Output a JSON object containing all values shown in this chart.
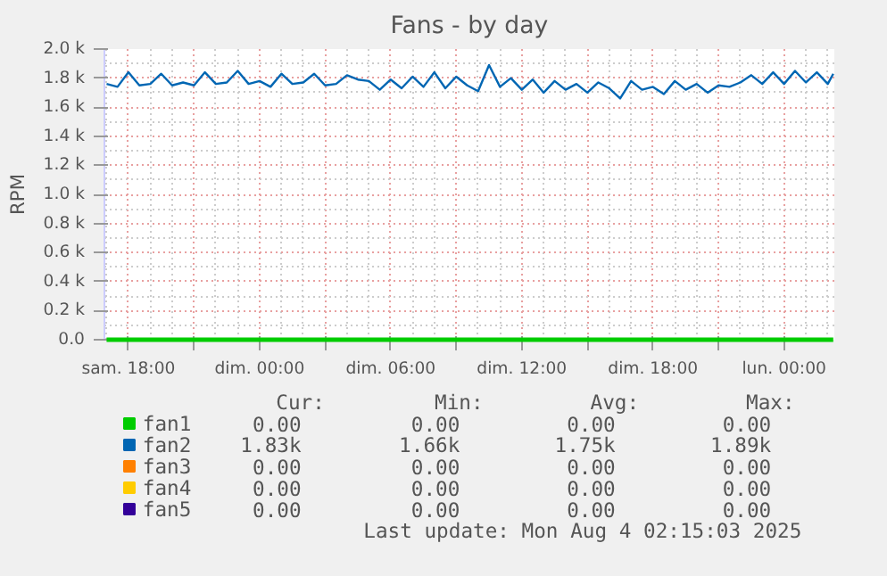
{
  "chart_data": {
    "type": "line",
    "title": "Fans - by day",
    "ylabel": "RPM",
    "x": [
      "2025-08-02T17:00",
      "2025-08-02T17:30",
      "2025-08-02T18:00",
      "2025-08-02T18:30",
      "2025-08-02T19:00",
      "2025-08-02T19:30",
      "2025-08-02T20:00",
      "2025-08-02T20:30",
      "2025-08-02T21:00",
      "2025-08-02T21:30",
      "2025-08-02T22:00",
      "2025-08-02T22:30",
      "2025-08-02T23:00",
      "2025-08-02T23:30",
      "2025-08-03T00:00",
      "2025-08-03T00:30",
      "2025-08-03T01:00",
      "2025-08-03T01:30",
      "2025-08-03T02:00",
      "2025-08-03T02:30",
      "2025-08-03T03:00",
      "2025-08-03T03:30",
      "2025-08-03T04:00",
      "2025-08-03T04:30",
      "2025-08-03T05:00",
      "2025-08-03T05:30",
      "2025-08-03T06:00",
      "2025-08-03T06:30",
      "2025-08-03T07:00",
      "2025-08-03T07:30",
      "2025-08-03T08:00",
      "2025-08-03T08:30",
      "2025-08-03T09:00",
      "2025-08-03T09:30",
      "2025-08-03T10:00",
      "2025-08-03T10:30",
      "2025-08-03T11:00",
      "2025-08-03T11:30",
      "2025-08-03T12:00",
      "2025-08-03T12:30",
      "2025-08-03T13:00",
      "2025-08-03T13:30",
      "2025-08-03T14:00",
      "2025-08-03T14:30",
      "2025-08-03T15:00",
      "2025-08-03T15:30",
      "2025-08-03T16:00",
      "2025-08-03T16:30",
      "2025-08-03T17:00",
      "2025-08-03T17:30",
      "2025-08-03T18:00",
      "2025-08-03T18:30",
      "2025-08-03T19:00",
      "2025-08-03T19:30",
      "2025-08-03T20:00",
      "2025-08-03T20:30",
      "2025-08-03T21:00",
      "2025-08-03T21:30",
      "2025-08-03T22:00",
      "2025-08-03T22:30",
      "2025-08-03T23:00",
      "2025-08-03T23:30",
      "2025-08-04T00:00",
      "2025-08-04T00:30",
      "2025-08-04T01:00",
      "2025-08-04T01:30",
      "2025-08-04T02:00",
      "2025-08-04T02:15"
    ],
    "series": [
      {
        "name": "fan1",
        "color": "#00cc00",
        "values": [
          0,
          0,
          0,
          0,
          0,
          0,
          0,
          0,
          0,
          0,
          0,
          0,
          0,
          0,
          0,
          0,
          0,
          0,
          0,
          0,
          0,
          0,
          0,
          0,
          0,
          0,
          0,
          0,
          0,
          0,
          0,
          0,
          0,
          0,
          0,
          0,
          0,
          0,
          0,
          0,
          0,
          0,
          0,
          0,
          0,
          0,
          0,
          0,
          0,
          0,
          0,
          0,
          0,
          0,
          0,
          0,
          0,
          0,
          0,
          0,
          0,
          0,
          0,
          0,
          0,
          0,
          0,
          0
        ]
      },
      {
        "name": "fan2",
        "color": "#0066b3",
        "values": [
          1760,
          1740,
          1840,
          1750,
          1760,
          1830,
          1750,
          1770,
          1750,
          1840,
          1760,
          1770,
          1850,
          1760,
          1780,
          1740,
          1830,
          1760,
          1770,
          1830,
          1750,
          1760,
          1820,
          1790,
          1780,
          1720,
          1790,
          1730,
          1810,
          1740,
          1840,
          1730,
          1810,
          1750,
          1710,
          1890,
          1740,
          1800,
          1720,
          1790,
          1700,
          1780,
          1720,
          1760,
          1700,
          1770,
          1730,
          1660,
          1780,
          1720,
          1740,
          1690,
          1780,
          1720,
          1760,
          1700,
          1750,
          1740,
          1770,
          1820,
          1760,
          1840,
          1760,
          1850,
          1770,
          1840,
          1760,
          1830
        ]
      },
      {
        "name": "fan3",
        "color": "#ff8000",
        "values": [
          null,
          null,
          null,
          null,
          null,
          null,
          null,
          null,
          null,
          null,
          null,
          null,
          null,
          null,
          null,
          null,
          null,
          null,
          null,
          null,
          null,
          null,
          null,
          null,
          null,
          null,
          null,
          null,
          null,
          null,
          null,
          null,
          null,
          null,
          null,
          null,
          null,
          null,
          null,
          null,
          null,
          null,
          null,
          null,
          null,
          null,
          null,
          null,
          null,
          null,
          null,
          null,
          null,
          null,
          null,
          null,
          null,
          null,
          null,
          null,
          null,
          null,
          null,
          null,
          null,
          null,
          null,
          null
        ]
      },
      {
        "name": "fan4",
        "color": "#ffcc00",
        "values": [
          null,
          null,
          null,
          null,
          null,
          null,
          null,
          null,
          null,
          null,
          null,
          null,
          null,
          null,
          null,
          null,
          null,
          null,
          null,
          null,
          null,
          null,
          null,
          null,
          null,
          null,
          null,
          null,
          null,
          null,
          null,
          null,
          null,
          null,
          null,
          null,
          null,
          null,
          null,
          null,
          null,
          null,
          null,
          null,
          null,
          null,
          null,
          null,
          null,
          null,
          null,
          null,
          null,
          null,
          null,
          null,
          null,
          null,
          null,
          null,
          null,
          null,
          null,
          null,
          null,
          null,
          null,
          null
        ]
      },
      {
        "name": "fan5",
        "color": "#330099",
        "values": [
          null,
          null,
          null,
          null,
          null,
          null,
          null,
          null,
          null,
          null,
          null,
          null,
          null,
          null,
          null,
          null,
          null,
          null,
          null,
          null,
          null,
          null,
          null,
          null,
          null,
          null,
          null,
          null,
          null,
          null,
          null,
          null,
          null,
          null,
          null,
          null,
          null,
          null,
          null,
          null,
          null,
          null,
          null,
          null,
          null,
          null,
          null,
          null,
          null,
          null,
          null,
          null,
          null,
          null,
          null,
          null,
          null,
          null,
          null,
          null,
          null,
          null,
          null,
          null,
          null,
          null,
          null,
          null
        ]
      }
    ],
    "xlim": [
      "2025-08-02T16:54",
      "2025-08-04T02:18"
    ],
    "xticks": [
      {
        "value": "2025-08-02T18:00",
        "label": "sam. 18:00"
      },
      {
        "value": "2025-08-02T21:00",
        "label": null
      },
      {
        "value": "2025-08-03T00:00",
        "label": "dim. 00:00"
      },
      {
        "value": "2025-08-03T03:00",
        "label": null
      },
      {
        "value": "2025-08-03T06:00",
        "label": "dim. 06:00"
      },
      {
        "value": "2025-08-03T09:00",
        "label": null
      },
      {
        "value": "2025-08-03T12:00",
        "label": "dim. 12:00"
      },
      {
        "value": "2025-08-03T15:00",
        "label": null
      },
      {
        "value": "2025-08-03T18:00",
        "label": "dim. 18:00"
      },
      {
        "value": "2025-08-03T21:00",
        "label": null
      },
      {
        "value": "2025-08-04T00:00",
        "label": "lun. 00:00"
      }
    ],
    "ylim": [
      0,
      2000
    ],
    "yticks": [
      {
        "value": 0,
        "label": "0.0"
      },
      {
        "value": 200,
        "label": "0.2 k"
      },
      {
        "value": 400,
        "label": "0.4 k"
      },
      {
        "value": 600,
        "label": "0.6 k"
      },
      {
        "value": 800,
        "label": "0.8 k"
      },
      {
        "value": 1000,
        "label": "1.0 k"
      },
      {
        "value": 1200,
        "label": "1.2 k"
      },
      {
        "value": 1400,
        "label": "1.4 k"
      },
      {
        "value": 1600,
        "label": "1.6 k"
      },
      {
        "value": 1800,
        "label": "1.8 k"
      },
      {
        "value": 2000,
        "label": "2.0 k"
      }
    ],
    "grid": true,
    "legend": "bottom",
    "line_style": "solid",
    "marker": "none",
    "annotations": [
      "Cur:",
      "Min:",
      "Avg:",
      "Max:",
      "0.00",
      "0.00",
      "0.00",
      "0.00",
      "1.83k",
      "1.66k",
      "1.75k",
      "1.89k",
      "0.00",
      "0.00",
      "0.00",
      "0.00",
      "0.00",
      "0.00",
      "0.00",
      "0.00",
      "0.00",
      "0.00",
      "0.00",
      "0.00",
      "Last update: Mon Aug  4 02:15:03 2025"
    ]
  }
}
